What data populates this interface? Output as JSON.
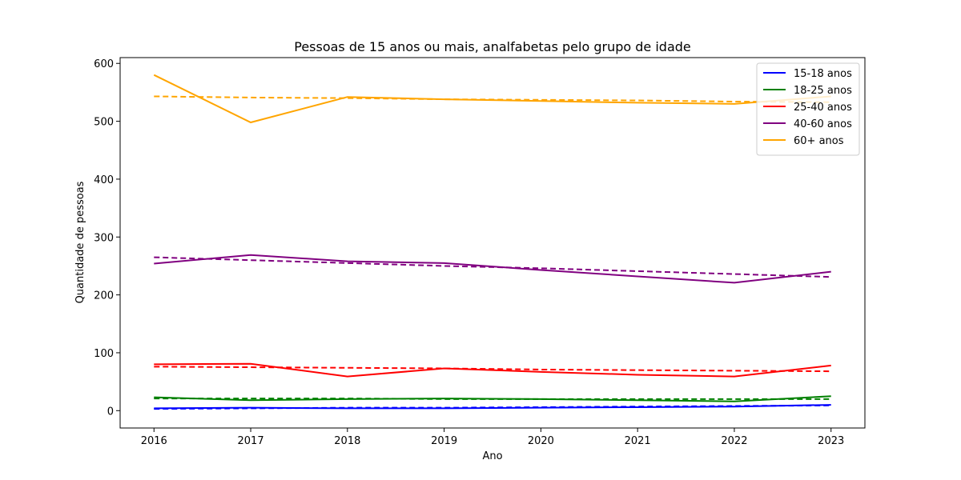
{
  "chart_data": {
    "type": "line",
    "title": "Pessoas de 15 anos ou mais, analfabetas pelo grupo de idade",
    "xlabel": "Ano",
    "ylabel": "Quantidade de pessoas",
    "x": [
      2016,
      2017,
      2018,
      2019,
      2020,
      2021,
      2022,
      2023
    ],
    "xlim": [
      2015.65,
      2023.35
    ],
    "ylim": [
      -30,
      610
    ],
    "yticks": [
      0,
      100,
      200,
      300,
      400,
      500,
      600
    ],
    "grid": false,
    "legend": "top-right",
    "trend_style": "dashed",
    "series": [
      {
        "name": "15-18 anos",
        "color": "#0000ff",
        "values": [
          4,
          5,
          4,
          4,
          5,
          6,
          7,
          10
        ],
        "trend": [
          3,
          4,
          5,
          5,
          6,
          7,
          8,
          9
        ]
      },
      {
        "name": "18-25 anos",
        "color": "#008000",
        "values": [
          23,
          18,
          20,
          21,
          20,
          18,
          16,
          25
        ],
        "trend": [
          21,
          21,
          21,
          20,
          20,
          20,
          20,
          20
        ]
      },
      {
        "name": "25-40 anos",
        "color": "#ff0000",
        "values": [
          80,
          81,
          59,
          73,
          67,
          62,
          59,
          78
        ],
        "trend": [
          76,
          75,
          74,
          73,
          71,
          70,
          69,
          68
        ]
      },
      {
        "name": "40-60 anos",
        "color": "#800080",
        "values": [
          254,
          269,
          258,
          255,
          243,
          232,
          221,
          240
        ],
        "trend": [
          265,
          260,
          255,
          250,
          246,
          241,
          236,
          231
        ]
      },
      {
        "name": "60+ anos",
        "color": "#ffa500",
        "values": [
          580,
          498,
          542,
          538,
          535,
          532,
          530,
          543
        ],
        "trend": [
          543,
          541,
          540,
          538,
          537,
          536,
          534,
          533
        ]
      }
    ]
  }
}
